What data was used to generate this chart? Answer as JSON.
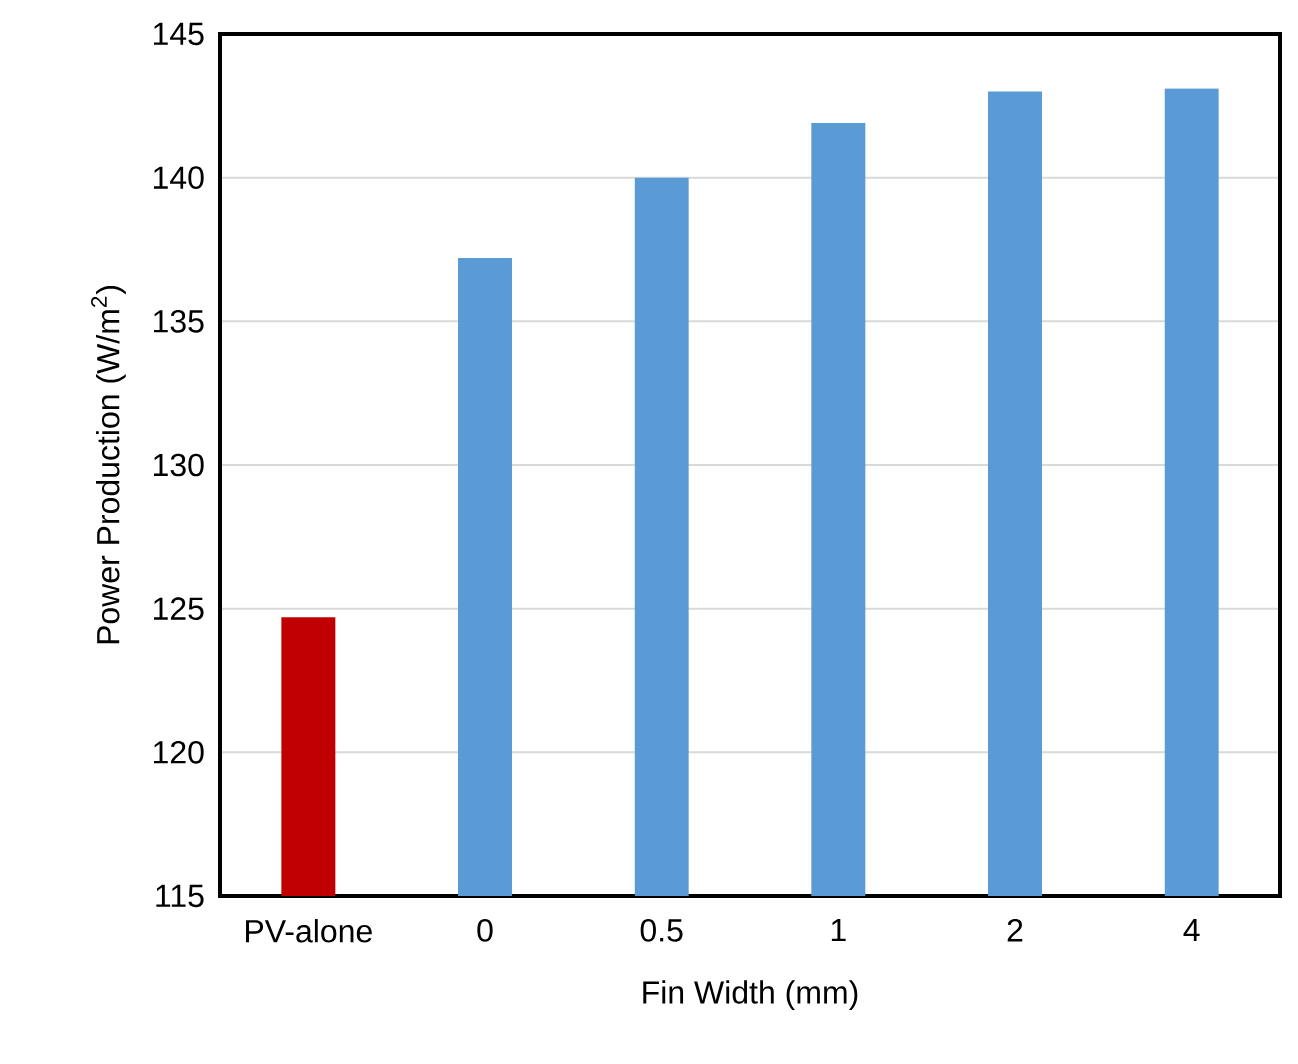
{
  "chart_data": {
    "type": "bar",
    "xlabel": "Fin Width (mm)",
    "ylabel": "Power Production (W/m$^{2}$)",
    "categories": [
      "PV-alone",
      "0",
      "0.5",
      "1",
      "2",
      "4"
    ],
    "values": [
      124.7,
      137.2,
      140.0,
      141.9,
      143.0,
      143.1
    ],
    "colors": [
      "#c00000",
      "#5b9bd5",
      "#5b9bd5",
      "#5b9bd5",
      "#5b9bd5",
      "#5b9bd5"
    ],
    "ylim": [
      115,
      145
    ],
    "yticks": [
      115,
      120,
      125,
      130,
      135,
      140,
      145
    ],
    "grid": "y"
  }
}
